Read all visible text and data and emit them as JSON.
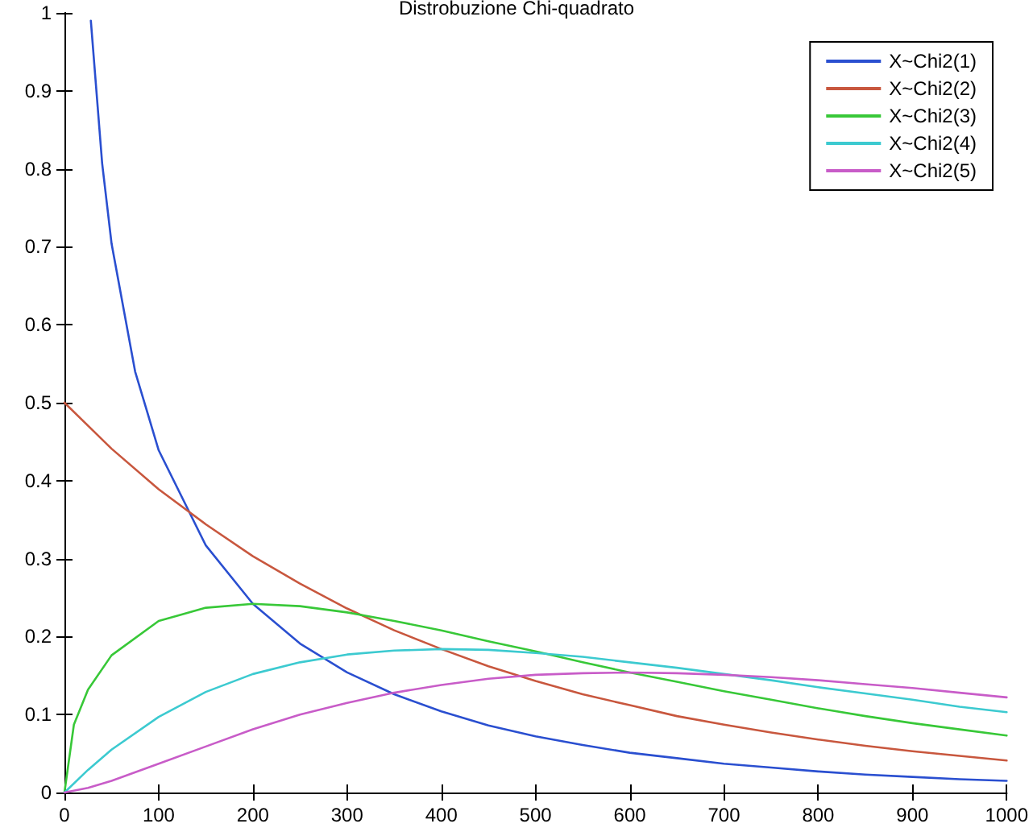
{
  "chart_data": {
    "type": "line",
    "title": "Distrobuzione Chi-quadrato",
    "xlim": [
      0,
      1000
    ],
    "xticks": [
      0,
      100,
      200,
      300,
      400,
      500,
      600,
      700,
      800,
      900,
      1000
    ],
    "ylim": [
      0,
      1
    ],
    "yticks": [
      0,
      0.1,
      0.2,
      0.3,
      0.4,
      0.5,
      0.6,
      0.7,
      0.8,
      0.9,
      1
    ],
    "grid": false,
    "legend": "top right",
    "marker": "none",
    "line_style": "solid",
    "series": [
      {
        "name": "X~Chi2(1)",
        "color": "#2a4fd0",
        "x": [
          28,
          40,
          50,
          75,
          100,
          150,
          200,
          250,
          300,
          350,
          400,
          450,
          500,
          550,
          600,
          650,
          700,
          750,
          800,
          850,
          900,
          950,
          1000
        ],
        "values": [
          0.99,
          0.807,
          0.704,
          0.54,
          0.439,
          0.317,
          0.242,
          0.191,
          0.154,
          0.126,
          0.104,
          0.086,
          0.072,
          0.061,
          0.051,
          0.044,
          0.037,
          0.032,
          0.027,
          0.023,
          0.02,
          0.017,
          0.015
        ]
      },
      {
        "name": "X~Chi2(2)",
        "color": "#c8573e",
        "x": [
          0,
          50,
          100,
          150,
          200,
          250,
          300,
          350,
          400,
          450,
          500,
          550,
          600,
          650,
          700,
          750,
          800,
          850,
          900,
          950,
          1000
        ],
        "values": [
          0.5,
          0.441,
          0.389,
          0.344,
          0.303,
          0.268,
          0.236,
          0.208,
          0.184,
          0.162,
          0.143,
          0.126,
          0.112,
          0.098,
          0.087,
          0.077,
          0.068,
          0.06,
          0.053,
          0.047,
          0.041
        ]
      },
      {
        "name": "X~Chi2(3)",
        "color": "#38c838",
        "x": [
          0,
          10,
          25,
          50,
          100,
          150,
          200,
          250,
          300,
          350,
          400,
          450,
          500,
          550,
          600,
          650,
          700,
          750,
          800,
          850,
          900,
          950,
          1000
        ],
        "values": [
          0,
          0.087,
          0.132,
          0.176,
          0.22,
          0.237,
          0.242,
          0.239,
          0.231,
          0.22,
          0.208,
          0.194,
          0.181,
          0.167,
          0.154,
          0.142,
          0.13,
          0.119,
          0.108,
          0.098,
          0.089,
          0.081,
          0.073
        ]
      },
      {
        "name": "X~Chi2(4)",
        "color": "#3ccad0",
        "x": [
          0,
          25,
          50,
          100,
          150,
          200,
          250,
          300,
          350,
          400,
          450,
          500,
          550,
          600,
          650,
          700,
          750,
          800,
          850,
          900,
          950,
          1000
        ],
        "values": [
          0,
          0.029,
          0.055,
          0.097,
          0.129,
          0.152,
          0.167,
          0.177,
          0.182,
          0.184,
          0.183,
          0.179,
          0.174,
          0.167,
          0.16,
          0.152,
          0.144,
          0.135,
          0.127,
          0.119,
          0.11,
          0.103
        ]
      },
      {
        "name": "X~Chi2(5)",
        "color": "#c85cc8",
        "x": [
          0,
          25,
          50,
          100,
          150,
          200,
          250,
          300,
          350,
          400,
          450,
          500,
          550,
          600,
          650,
          700,
          750,
          800,
          850,
          900,
          950,
          1000
        ],
        "values": [
          0,
          0.006,
          0.015,
          0.037,
          0.059,
          0.081,
          0.1,
          0.115,
          0.128,
          0.138,
          0.146,
          0.151,
          0.153,
          0.154,
          0.153,
          0.151,
          0.148,
          0.144,
          0.139,
          0.134,
          0.128,
          0.122
        ]
      }
    ]
  }
}
